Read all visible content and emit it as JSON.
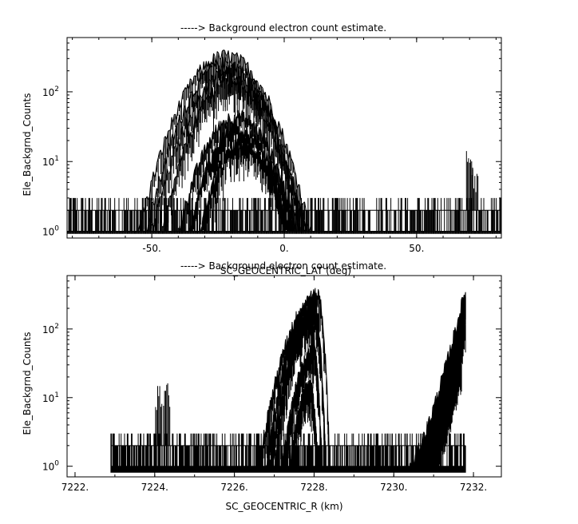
{
  "chart_data": [
    {
      "type": "line",
      "title": "-----> Background electron count estimate.",
      "xlabel": "SC_GEOCENTRIC_LAT (deg)",
      "ylabel": "Ele_Backgrnd_Counts",
      "yscale": "log",
      "xlim": [
        -82,
        82
      ],
      "ylim": [
        0.8,
        600
      ],
      "xticks": [
        {
          "value": -50,
          "label": "-50."
        },
        {
          "value": 0,
          "label": "0."
        },
        {
          "value": 50,
          "label": "50."
        }
      ],
      "yticks": [
        {
          "value": 1,
          "base": "10",
          "exp": "0"
        },
        {
          "value": 10,
          "base": "10",
          "exp": "1"
        },
        {
          "value": 100,
          "base": "10",
          "exp": "2"
        }
      ],
      "grid": false,
      "baseline_counts": [
        1,
        2,
        3
      ],
      "data_x_range": [
        -82,
        82
      ],
      "series": [
        {
          "peak_x": -22,
          "peak_y": 330,
          "left_x": -55,
          "right_x": 10
        },
        {
          "peak_x": -22,
          "peak_y": 260,
          "left_x": -52,
          "right_x": 8
        },
        {
          "peak_x": -20,
          "peak_y": 200,
          "left_x": -50,
          "right_x": 8
        },
        {
          "peak_x": -20,
          "peak_y": 150,
          "left_x": -46,
          "right_x": 6
        },
        {
          "peak_x": -18,
          "peak_y": 45,
          "left_x": -40,
          "right_x": 5
        },
        {
          "peak_x": -18,
          "peak_y": 30,
          "left_x": -36,
          "right_x": 4
        },
        {
          "peak_x": -16,
          "peak_y": 18,
          "left_x": -32,
          "right_x": 2
        }
      ],
      "spikes": [
        {
          "x": 70,
          "y": 18
        },
        {
          "x": 72,
          "y": 8
        }
      ]
    },
    {
      "type": "line",
      "title": "-----> Background electron count estimate.",
      "xlabel": "SC_GEOCENTRIC_R (km)",
      "ylabel": "Ele_Backgrnd_Counts",
      "yscale": "log",
      "xlim": [
        7221.8,
        7232.7
      ],
      "ylim": [
        0.7,
        600
      ],
      "xticks": [
        {
          "value": 7222,
          "label": "7222."
        },
        {
          "value": 7224,
          "label": "7224."
        },
        {
          "value": 7226,
          "label": "7226."
        },
        {
          "value": 7228,
          "label": "7228."
        },
        {
          "value": 7230,
          "label": "7230."
        },
        {
          "value": 7232,
          "label": "7232."
        }
      ],
      "yticks": [
        {
          "value": 1,
          "base": "10",
          "exp": "0"
        },
        {
          "value": 10,
          "base": "10",
          "exp": "1"
        },
        {
          "value": 100,
          "base": "10",
          "exp": "2"
        }
      ],
      "grid": false,
      "baseline_counts": [
        1,
        2,
        3
      ],
      "data_x_range": [
        7222.9,
        7231.8
      ],
      "series": [
        {
          "peak_x": 7228.1,
          "peak_y": 320,
          "left_x": 7226.6,
          "right_x": 7228.4
        },
        {
          "peak_x": 7228.0,
          "peak_y": 260,
          "left_x": 7226.8,
          "right_x": 7228.3
        },
        {
          "peak_x": 7228.0,
          "peak_y": 200,
          "left_x": 7226.9,
          "right_x": 7228.3
        },
        {
          "peak_x": 7227.9,
          "peak_y": 150,
          "left_x": 7227.0,
          "right_x": 7228.2
        },
        {
          "peak_x": 7228.0,
          "peak_y": 50,
          "left_x": 7227.2,
          "right_x": 7228.2
        },
        {
          "peak_x": 7227.9,
          "peak_y": 15,
          "left_x": 7227.4,
          "right_x": 7228.1
        }
      ],
      "rise_series": [
        {
          "start_x": 7230.4,
          "end_x": 7231.8,
          "end_y": 380
        },
        {
          "start_x": 7230.5,
          "end_x": 7231.8,
          "end_y": 250
        },
        {
          "start_x": 7230.6,
          "end_x": 7231.8,
          "end_y": 150
        },
        {
          "start_x": 7230.7,
          "end_x": 7231.7,
          "end_y": 80
        },
        {
          "start_x": 7230.8,
          "end_x": 7231.7,
          "end_y": 40
        }
      ],
      "spikes": [
        {
          "x": 7224.1,
          "y": 15
        },
        {
          "x": 7224.3,
          "y": 18
        }
      ]
    }
  ]
}
